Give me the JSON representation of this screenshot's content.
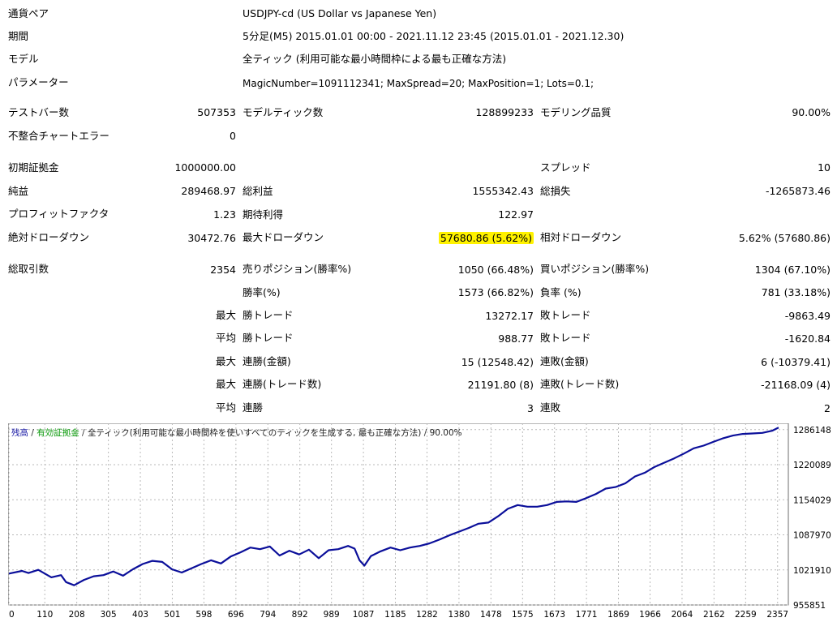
{
  "info": {
    "pair": {
      "label": "通貨ペア",
      "value": "USDJPY-cd (US Dollar vs Japanese Yen)"
    },
    "period": {
      "label": "期間",
      "value": "5分足(M5) 2015.01.01 00:00 - 2021.11.12 23:45 (2015.01.01 - 2021.12.30)"
    },
    "model": {
      "label": "モデル",
      "value": "全ティック (利用可能な最小時間枠による最も正確な方法)"
    },
    "params": {
      "label": "パラメーター",
      "value": "MagicNumber=1091112341; MaxSpread=20; MaxPosition=1; Lots=0.1;"
    }
  },
  "stats": {
    "bars": {
      "label": "テストバー数",
      "value": "507353"
    },
    "ticks": {
      "label": "モデルティック数",
      "value": "128899233"
    },
    "quality": {
      "label": "モデリング品質",
      "value": "90.00%"
    },
    "mismatch": {
      "label": "不整合チャートエラー",
      "value": "0"
    },
    "deposit": {
      "label": "初期証拠金",
      "value": "1000000.00"
    },
    "spread": {
      "label": "スプレッド",
      "value": "10"
    },
    "net_profit": {
      "label": "純益",
      "value": "289468.97"
    },
    "gross_profit": {
      "label": "総利益",
      "value": "1555342.43"
    },
    "gross_loss": {
      "label": "総損失",
      "value": "-1265873.46"
    },
    "profit_factor": {
      "label": "プロフィットファクタ",
      "value": "1.23"
    },
    "expected_payoff": {
      "label": "期待利得",
      "value": "122.97"
    },
    "abs_dd": {
      "label": "絶対ドローダウン",
      "value": "30472.76"
    },
    "max_dd": {
      "label": "最大ドローダウン",
      "value": "57680.86 (5.62%)"
    },
    "rel_dd": {
      "label": "相対ドローダウン",
      "value": "5.62% (57680.86)"
    },
    "total_trades": {
      "label": "総取引数",
      "value": "2354"
    },
    "short_pos": {
      "label": "売りポジション(勝率%)",
      "value": "1050 (66.48%)"
    },
    "long_pos": {
      "label": "買いポジション(勝率%)",
      "value": "1304 (67.10%)"
    },
    "win_rate": {
      "label": "勝率(%)",
      "value": "1573 (66.82%)"
    },
    "loss_rate": {
      "label": "負率 (%)",
      "value": "781 (33.18%)"
    },
    "largest_profit": {
      "prefix": "最大",
      "label": "勝トレード",
      "value": "13272.17"
    },
    "largest_loss": {
      "label": "敗トレード",
      "value": "-9863.49"
    },
    "avg_profit": {
      "prefix": "平均",
      "label": "勝トレード",
      "value": "988.77"
    },
    "avg_loss": {
      "label": "敗トレード",
      "value": "-1620.84"
    },
    "max_cons_wins_money": {
      "prefix": "最大",
      "label": "連勝(金額)",
      "value": "15 (12548.42)"
    },
    "max_cons_losses_money": {
      "label": "連敗(金額)",
      "value": "6 (-10379.41)"
    },
    "max_cons_profit_count": {
      "prefix": "最大",
      "label": "連勝(トレード数)",
      "value": "21191.80 (8)"
    },
    "max_cons_loss_count": {
      "label": "連敗(トレード数)",
      "value": "-21168.09 (4)"
    },
    "avg_cons_wins": {
      "prefix": "平均",
      "label": "連勝",
      "value": "3"
    },
    "avg_cons_losses": {
      "label": "連敗",
      "value": "2"
    }
  },
  "chart_legend": {
    "balance": "残高",
    "sep1": " / ",
    "equity": "有効証拠金",
    "sep2": " / ",
    "model": "全ティック(利用可能な最小時間枠を使いすべてのティックを生成する, 最も正確な方法)",
    "sep3": " / ",
    "quality": "90.00%"
  },
  "colors": {
    "line": "#0b0f9a",
    "balance_label": "#1a1aa6",
    "equity_label": "#0a9a0a",
    "grid": "#b9b9b9",
    "highlight": "#fff200"
  },
  "chart_data": {
    "type": "line",
    "title": "",
    "xlabel": "",
    "ylabel": "",
    "x_ticks": [
      0,
      110,
      208,
      305,
      403,
      501,
      598,
      696,
      794,
      892,
      989,
      1087,
      1185,
      1282,
      1380,
      1478,
      1575,
      1673,
      1771,
      1869,
      1966,
      2064,
      2162,
      2259,
      2357
    ],
    "y_ticks": [
      955851,
      1021910,
      1087970,
      1154029,
      1220089,
      1286148
    ],
    "xlim": [
      0,
      2380
    ],
    "ylim": [
      955851,
      1295000
    ],
    "grid": true,
    "series": [
      {
        "x": [
          0,
          40,
          60,
          90,
          130,
          160,
          175,
          200,
          230,
          260,
          290,
          320,
          350,
          380,
          410,
          440,
          470,
          500,
          530,
          560,
          590,
          620,
          650,
          680,
          710,
          740,
          770,
          800,
          830,
          860,
          890,
          920,
          950,
          980,
          1010,
          1040,
          1060,
          1075,
          1090,
          1110,
          1140,
          1170,
          1200,
          1230,
          1260,
          1290,
          1320,
          1350,
          1380,
          1410,
          1440,
          1470,
          1500,
          1530,
          1560,
          1590,
          1620,
          1650,
          1680,
          1710,
          1740,
          1770,
          1800,
          1830,
          1860,
          1890,
          1920,
          1950,
          1980,
          2010,
          2040,
          2070,
          2100,
          2130,
          2160,
          2190,
          2220,
          2250,
          2280,
          2310,
          2340,
          2360
        ],
        "y": [
          1015000,
          1020000,
          1016000,
          1022000,
          1008000,
          1012000,
          999000,
          993000,
          1003000,
          1010000,
          1012000,
          1019000,
          1011000,
          1023000,
          1033000,
          1039000,
          1037000,
          1023000,
          1017000,
          1025000,
          1033000,
          1040000,
          1034000,
          1047000,
          1055000,
          1064000,
          1061000,
          1066000,
          1049000,
          1058000,
          1051000,
          1060000,
          1044000,
          1059000,
          1061000,
          1067000,
          1062000,
          1040000,
          1030000,
          1048000,
          1057000,
          1064000,
          1059000,
          1064000,
          1067000,
          1072000,
          1079000,
          1087000,
          1094000,
          1101000,
          1109000,
          1111000,
          1123000,
          1137000,
          1144000,
          1141000,
          1141000,
          1144000,
          1150000,
          1151000,
          1150000,
          1157000,
          1165000,
          1175000,
          1178000,
          1185000,
          1198000,
          1205000,
          1216000,
          1224000,
          1232000,
          1241000,
          1251000,
          1256000,
          1263000,
          1270000,
          1275000,
          1278000,
          1279000,
          1280000,
          1284000,
          1290000
        ]
      }
    ]
  }
}
